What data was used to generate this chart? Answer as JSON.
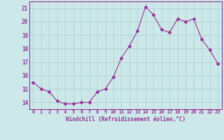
{
  "x": [
    0,
    1,
    2,
    3,
    4,
    5,
    6,
    7,
    8,
    9,
    10,
    11,
    12,
    13,
    14,
    15,
    16,
    17,
    18,
    19,
    20,
    21,
    22,
    23
  ],
  "y": [
    15.5,
    15.0,
    14.8,
    14.1,
    13.9,
    13.9,
    14.0,
    14.0,
    14.8,
    15.0,
    15.9,
    17.3,
    18.2,
    19.3,
    21.1,
    20.5,
    19.4,
    19.2,
    20.2,
    20.0,
    20.2,
    18.7,
    17.9,
    16.9
  ],
  "line_color": "#993399",
  "marker": "D",
  "marker_size": 2,
  "bg_color": "#cce8e8",
  "grid_color": "#aacccc",
  "xlabel": "Windchill (Refroidissement éolien,°C)",
  "ylabel_ticks": [
    14,
    15,
    16,
    17,
    18,
    19,
    20,
    21
  ],
  "xlim": [
    -0.5,
    23.5
  ],
  "ylim": [
    13.5,
    21.5
  ],
  "xtick_labels": [
    "0",
    "1",
    "2",
    "3",
    "4",
    "5",
    "6",
    "7",
    "8",
    "9",
    "10",
    "11",
    "12",
    "13",
    "14",
    "15",
    "16",
    "17",
    "18",
    "19",
    "20",
    "21",
    "22",
    "23"
  ],
  "axis_color": "#993399",
  "tick_color": "#993399",
  "label_color": "#993399"
}
